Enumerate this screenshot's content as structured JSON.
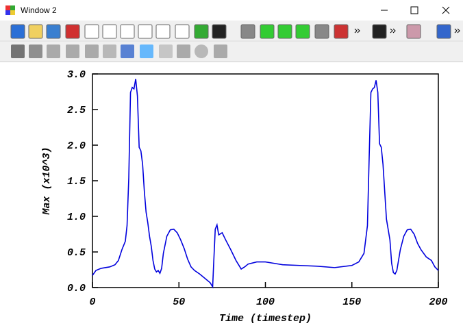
{
  "window": {
    "title": "Window 2"
  },
  "chart_data": {
    "type": "line",
    "xlabel": "Time (timestep)",
    "ylabel": "Max (x10^3)",
    "x": [
      0,
      2,
      5,
      10,
      13,
      15,
      17,
      19,
      20,
      21,
      22,
      23,
      24,
      25,
      26,
      27,
      28,
      29,
      30,
      31,
      32,
      33,
      34,
      35,
      36,
      37,
      38,
      39,
      40,
      41,
      43,
      45,
      47,
      49,
      51,
      53,
      55,
      57,
      59,
      62,
      65,
      68,
      69.5,
      70,
      71,
      72,
      73,
      75,
      77,
      80,
      83,
      86,
      88,
      90,
      95,
      100,
      105,
      110,
      120,
      130,
      140,
      150,
      154,
      157,
      159,
      160,
      161,
      162,
      163,
      164,
      165,
      166,
      167,
      168,
      170,
      172,
      173,
      174,
      175,
      176,
      178,
      180,
      182,
      184,
      186,
      188,
      190,
      193,
      196,
      198,
      200
    ],
    "series": [
      {
        "name": "Max",
        "color": "#0000dd",
        "values": [
          0.17,
          0.24,
          0.27,
          0.29,
          0.32,
          0.38,
          0.53,
          0.65,
          0.87,
          1.54,
          2.74,
          2.81,
          2.79,
          2.93,
          2.69,
          1.97,
          1.92,
          1.73,
          1.35,
          1.06,
          0.91,
          0.72,
          0.58,
          0.38,
          0.26,
          0.22,
          0.24,
          0.2,
          0.27,
          0.48,
          0.72,
          0.81,
          0.82,
          0.77,
          0.67,
          0.55,
          0.4,
          0.29,
          0.24,
          0.19,
          0.13,
          0.07,
          0.01,
          0.29,
          0.82,
          0.88,
          0.74,
          0.77,
          0.67,
          0.53,
          0.38,
          0.26,
          0.29,
          0.33,
          0.36,
          0.36,
          0.34,
          0.32,
          0.31,
          0.3,
          0.28,
          0.31,
          0.36,
          0.48,
          0.87,
          1.83,
          2.74,
          2.79,
          2.81,
          2.91,
          2.74,
          2.02,
          1.97,
          1.73,
          0.96,
          0.67,
          0.34,
          0.21,
          0.19,
          0.24,
          0.53,
          0.72,
          0.81,
          0.82,
          0.75,
          0.62,
          0.53,
          0.43,
          0.38,
          0.29,
          0.24
        ]
      }
    ],
    "xlim": [
      0,
      200
    ],
    "xticks": [
      0,
      50,
      100,
      150,
      200
    ],
    "ylim": [
      0,
      3
    ],
    "yticks": [
      {
        "value": 0,
        "label": "0.0"
      },
      0.5,
      {
        "value": 1,
        "label": "1.0"
      },
      1.5,
      {
        "value": 2,
        "label": "2.0"
      },
      2.5,
      {
        "value": 3,
        "label": "3.0"
      }
    ]
  }
}
